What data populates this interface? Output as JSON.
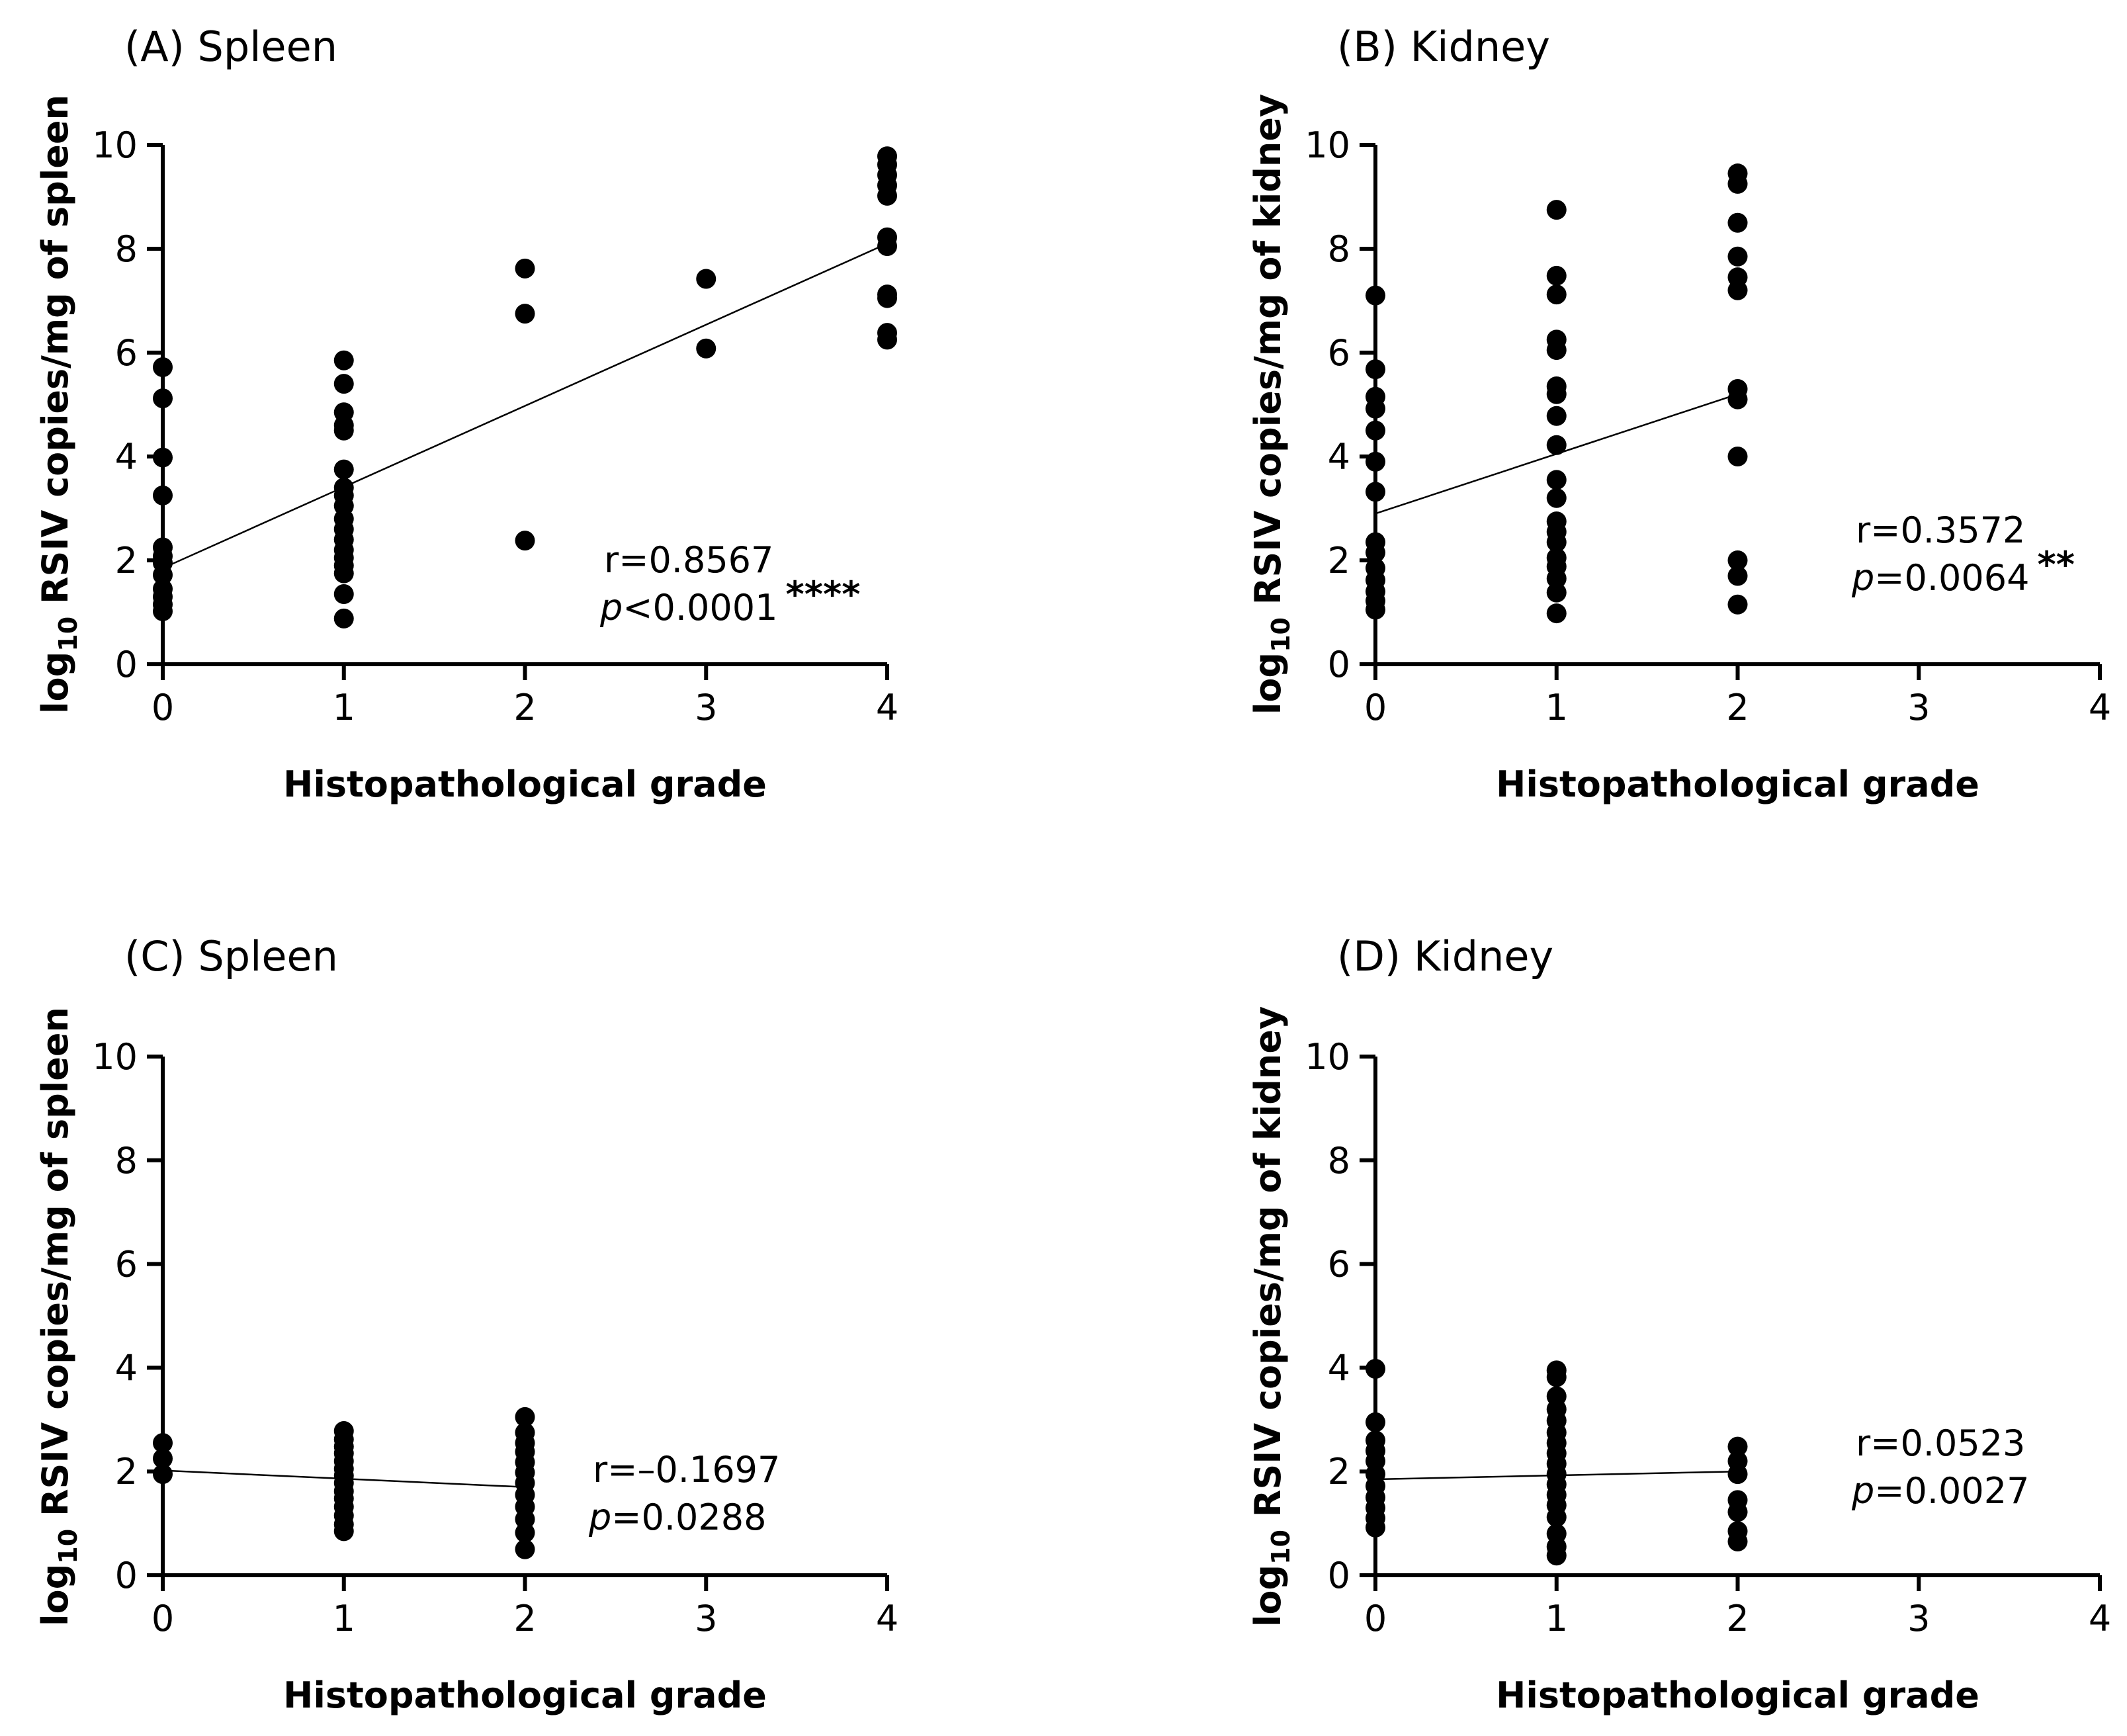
{
  "chart_data": [
    {
      "type": "scatter",
      "panel_label": "(A) Spleen",
      "xlabel": "Histopathological grade",
      "ylabel": "log10 RSIV copies/mg of spleen",
      "ylabel_parts": {
        "log": "log",
        "sub": "10",
        "rest": " RSIV copies/mg of spleen"
      },
      "xlim": [
        0,
        4
      ],
      "ylim": [
        0,
        10
      ],
      "xticks": [
        0,
        1,
        2,
        3,
        4
      ],
      "yticks": [
        0,
        2,
        4,
        6,
        8,
        10
      ],
      "points": [
        {
          "x": 0,
          "y": 5.72
        },
        {
          "x": 0,
          "y": 5.12
        },
        {
          "x": 0,
          "y": 3.98
        },
        {
          "x": 0,
          "y": 3.25
        },
        {
          "x": 0,
          "y": 2.25
        },
        {
          "x": 0,
          "y": 2.08
        },
        {
          "x": 0,
          "y": 1.95
        },
        {
          "x": 0,
          "y": 1.72
        },
        {
          "x": 0,
          "y": 1.45
        },
        {
          "x": 0,
          "y": 1.3
        },
        {
          "x": 0,
          "y": 1.15
        },
        {
          "x": 0,
          "y": 1.02
        },
        {
          "x": 1,
          "y": 5.85
        },
        {
          "x": 1,
          "y": 5.4
        },
        {
          "x": 1,
          "y": 4.85
        },
        {
          "x": 1,
          "y": 4.6
        },
        {
          "x": 1,
          "y": 4.5
        },
        {
          "x": 1,
          "y": 3.75
        },
        {
          "x": 1,
          "y": 3.4
        },
        {
          "x": 1,
          "y": 3.25
        },
        {
          "x": 1,
          "y": 3.05
        },
        {
          "x": 1,
          "y": 2.8
        },
        {
          "x": 1,
          "y": 2.6
        },
        {
          "x": 1,
          "y": 2.4
        },
        {
          "x": 1,
          "y": 2.2
        },
        {
          "x": 1,
          "y": 2.05
        },
        {
          "x": 1,
          "y": 1.9
        },
        {
          "x": 1,
          "y": 1.75
        },
        {
          "x": 1,
          "y": 1.35
        },
        {
          "x": 1,
          "y": 0.88
        },
        {
          "x": 2,
          "y": 7.62
        },
        {
          "x": 2,
          "y": 6.75
        },
        {
          "x": 2,
          "y": 2.38
        },
        {
          "x": 3,
          "y": 7.42
        },
        {
          "x": 3,
          "y": 6.08
        },
        {
          "x": 4,
          "y": 9.78
        },
        {
          "x": 4,
          "y": 9.62
        },
        {
          "x": 4,
          "y": 9.42
        },
        {
          "x": 4,
          "y": 9.22
        },
        {
          "x": 4,
          "y": 9.02
        },
        {
          "x": 4,
          "y": 8.22
        },
        {
          "x": 4,
          "y": 8.05
        },
        {
          "x": 4,
          "y": 7.12
        },
        {
          "x": 4,
          "y": 7.05
        },
        {
          "x": 4,
          "y": 6.38
        },
        {
          "x": 4,
          "y": 6.25
        }
      ],
      "regression": {
        "x": [
          0,
          4
        ],
        "y": [
          1.85,
          8.1
        ]
      },
      "stats": {
        "r_text": "r=0.8567",
        "p_symbol": "p",
        "p_rest": "<0.0001",
        "stars": "****"
      }
    },
    {
      "type": "scatter",
      "panel_label": "(B) Kidney",
      "xlabel": "Histopathological grade",
      "ylabel": "log10 RSIV copies/mg of kidney",
      "ylabel_parts": {
        "log": "log",
        "sub": "10",
        "rest": " RSIV copies/mg of kidney"
      },
      "xlim": [
        0,
        4
      ],
      "ylim": [
        0,
        10
      ],
      "xticks": [
        0,
        1,
        2,
        3,
        4
      ],
      "yticks": [
        0,
        2,
        4,
        6,
        8,
        10
      ],
      "points": [
        {
          "x": 0,
          "y": 7.1
        },
        {
          "x": 0,
          "y": 5.68
        },
        {
          "x": 0,
          "y": 5.15
        },
        {
          "x": 0,
          "y": 4.92
        },
        {
          "x": 0,
          "y": 4.5
        },
        {
          "x": 0,
          "y": 3.9
        },
        {
          "x": 0,
          "y": 3.32
        },
        {
          "x": 0,
          "y": 2.35
        },
        {
          "x": 0,
          "y": 2.15
        },
        {
          "x": 0,
          "y": 1.85
        },
        {
          "x": 0,
          "y": 1.62
        },
        {
          "x": 0,
          "y": 1.4
        },
        {
          "x": 0,
          "y": 1.22
        },
        {
          "x": 0,
          "y": 1.05
        },
        {
          "x": 1,
          "y": 8.75
        },
        {
          "x": 1,
          "y": 7.48
        },
        {
          "x": 1,
          "y": 7.12
        },
        {
          "x": 1,
          "y": 6.25
        },
        {
          "x": 1,
          "y": 6.05
        },
        {
          "x": 1,
          "y": 5.35
        },
        {
          "x": 1,
          "y": 5.2
        },
        {
          "x": 1,
          "y": 4.78
        },
        {
          "x": 1,
          "y": 4.22
        },
        {
          "x": 1,
          "y": 3.55
        },
        {
          "x": 1,
          "y": 3.2
        },
        {
          "x": 1,
          "y": 2.75
        },
        {
          "x": 1,
          "y": 2.55
        },
        {
          "x": 1,
          "y": 2.35
        },
        {
          "x": 1,
          "y": 2.05
        },
        {
          "x": 1,
          "y": 1.88
        },
        {
          "x": 1,
          "y": 1.65
        },
        {
          "x": 1,
          "y": 1.38
        },
        {
          "x": 1,
          "y": 0.98
        },
        {
          "x": 2,
          "y": 9.45
        },
        {
          "x": 2,
          "y": 9.25
        },
        {
          "x": 2,
          "y": 8.5
        },
        {
          "x": 2,
          "y": 7.85
        },
        {
          "x": 2,
          "y": 7.45
        },
        {
          "x": 2,
          "y": 7.2
        },
        {
          "x": 2,
          "y": 5.3
        },
        {
          "x": 2,
          "y": 5.1
        },
        {
          "x": 2,
          "y": 4.0
        },
        {
          "x": 2,
          "y": 2.0
        },
        {
          "x": 2,
          "y": 1.7
        },
        {
          "x": 2,
          "y": 1.15
        }
      ],
      "regression": {
        "x": [
          0,
          2
        ],
        "y": [
          2.9,
          5.2
        ]
      },
      "stats": {
        "r_text": "r=0.3572",
        "p_symbol": "p",
        "p_rest": "=0.0064",
        "stars": "**"
      }
    },
    {
      "type": "scatter",
      "panel_label": "(C) Spleen",
      "xlabel": "Histopathological grade",
      "ylabel": "log10 RSIV copies/mg of spleen",
      "ylabel_parts": {
        "log": "log",
        "sub": "10",
        "rest": " RSIV copies/mg of spleen"
      },
      "xlim": [
        0,
        4
      ],
      "ylim": [
        0,
        10
      ],
      "xticks": [
        0,
        1,
        2,
        3,
        4
      ],
      "yticks": [
        0,
        2,
        4,
        6,
        8,
        10
      ],
      "points": [
        {
          "x": 0,
          "y": 2.55
        },
        {
          "x": 0,
          "y": 2.25
        },
        {
          "x": 0,
          "y": 1.95
        },
        {
          "x": 1,
          "y": 2.78
        },
        {
          "x": 1,
          "y": 2.62
        },
        {
          "x": 1,
          "y": 2.48
        },
        {
          "x": 1,
          "y": 2.35
        },
        {
          "x": 1,
          "y": 2.2
        },
        {
          "x": 1,
          "y": 2.05
        },
        {
          "x": 1,
          "y": 1.92
        },
        {
          "x": 1,
          "y": 1.78
        },
        {
          "x": 1,
          "y": 1.62
        },
        {
          "x": 1,
          "y": 1.48
        },
        {
          "x": 1,
          "y": 1.32
        },
        {
          "x": 1,
          "y": 1.15
        },
        {
          "x": 1,
          "y": 0.98
        },
        {
          "x": 1,
          "y": 0.85
        },
        {
          "x": 2,
          "y": 3.05
        },
        {
          "x": 2,
          "y": 2.75
        },
        {
          "x": 2,
          "y": 2.55
        },
        {
          "x": 2,
          "y": 2.38
        },
        {
          "x": 2,
          "y": 2.18
        },
        {
          "x": 2,
          "y": 1.98
        },
        {
          "x": 2,
          "y": 1.78
        },
        {
          "x": 2,
          "y": 1.55
        },
        {
          "x": 2,
          "y": 1.32
        },
        {
          "x": 2,
          "y": 1.08
        },
        {
          "x": 2,
          "y": 0.82
        },
        {
          "x": 2,
          "y": 0.5
        }
      ],
      "regression": {
        "x": [
          0,
          2
        ],
        "y": [
          2.02,
          1.7
        ]
      },
      "stats": {
        "r_text": "r=–0.1697",
        "p_symbol": "p",
        "p_rest": "=0.0288",
        "stars": ""
      }
    },
    {
      "type": "scatter",
      "panel_label": "(D) Kidney",
      "xlabel": "Histopathological grade",
      "ylabel": "log10 RSIV copies/mg of kidney",
      "ylabel_parts": {
        "log": "log",
        "sub": "10",
        "rest": " RSIV copies/mg of kidney"
      },
      "xlim": [
        0,
        4
      ],
      "ylim": [
        0,
        10
      ],
      "xticks": [
        0,
        1,
        2,
        3,
        4
      ],
      "yticks": [
        0,
        2,
        4,
        6,
        8,
        10
      ],
      "points": [
        {
          "x": 0,
          "y": 3.98
        },
        {
          "x": 0,
          "y": 2.95
        },
        {
          "x": 0,
          "y": 2.6
        },
        {
          "x": 0,
          "y": 2.4
        },
        {
          "x": 0,
          "y": 2.2
        },
        {
          "x": 0,
          "y": 1.95
        },
        {
          "x": 0,
          "y": 1.72
        },
        {
          "x": 0,
          "y": 1.5
        },
        {
          "x": 0,
          "y": 1.3
        },
        {
          "x": 0,
          "y": 1.1
        },
        {
          "x": 0,
          "y": 0.92
        },
        {
          "x": 1,
          "y": 3.95
        },
        {
          "x": 1,
          "y": 3.82
        },
        {
          "x": 1,
          "y": 3.45
        },
        {
          "x": 1,
          "y": 3.2
        },
        {
          "x": 1,
          "y": 2.98
        },
        {
          "x": 1,
          "y": 2.75
        },
        {
          "x": 1,
          "y": 2.55
        },
        {
          "x": 1,
          "y": 2.35
        },
        {
          "x": 1,
          "y": 2.15
        },
        {
          "x": 1,
          "y": 1.95
        },
        {
          "x": 1,
          "y": 1.75
        },
        {
          "x": 1,
          "y": 1.55
        },
        {
          "x": 1,
          "y": 1.35
        },
        {
          "x": 1,
          "y": 1.12
        },
        {
          "x": 1,
          "y": 0.8
        },
        {
          "x": 1,
          "y": 0.55
        },
        {
          "x": 1,
          "y": 0.38
        },
        {
          "x": 2,
          "y": 2.48
        },
        {
          "x": 2,
          "y": 2.2
        },
        {
          "x": 2,
          "y": 1.95
        },
        {
          "x": 2,
          "y": 1.45
        },
        {
          "x": 2,
          "y": 1.22
        },
        {
          "x": 2,
          "y": 0.85
        },
        {
          "x": 2,
          "y": 0.65
        }
      ],
      "regression": {
        "x": [
          0,
          2
        ],
        "y": [
          1.85,
          2.0
        ]
      },
      "stats": {
        "r_text": "r=0.0523",
        "p_symbol": "p",
        "p_rest": "=0.0027",
        "stars": ""
      }
    }
  ]
}
